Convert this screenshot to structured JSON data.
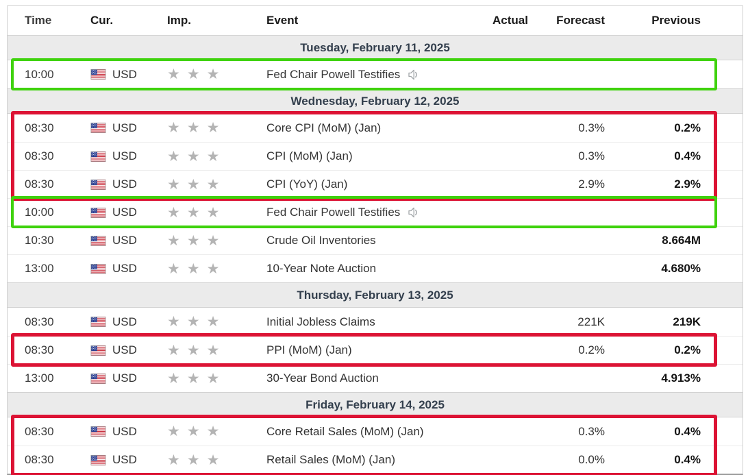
{
  "table": {
    "columns": {
      "time": "Time",
      "cur": "Cur.",
      "imp": "Imp.",
      "event": "Event",
      "actual": "Actual",
      "forecast": "Forecast",
      "previous": "Previous"
    },
    "days": [
      {
        "date_label": "Tuesday, February 11, 2025",
        "events": [
          {
            "time": "10:00",
            "currency": "USD",
            "importance": 3,
            "event": "Fed Chair Powell Testifies",
            "has_audio": true,
            "actual": "",
            "forecast": "",
            "previous": "",
            "highlight": "tuesday-powell"
          }
        ]
      },
      {
        "date_label": "Wednesday, February 12, 2025",
        "events": [
          {
            "time": "08:30",
            "currency": "USD",
            "importance": 3,
            "event": "Core CPI (MoM) (Jan)",
            "has_audio": false,
            "actual": "",
            "forecast": "0.3%",
            "previous": "0.2%",
            "highlight": "wed-cpi-block"
          },
          {
            "time": "08:30",
            "currency": "USD",
            "importance": 3,
            "event": "CPI (MoM) (Jan)",
            "has_audio": false,
            "actual": "",
            "forecast": "0.3%",
            "previous": "0.4%",
            "highlight": "wed-cpi-block"
          },
          {
            "time": "08:30",
            "currency": "USD",
            "importance": 3,
            "event": "CPI (YoY) (Jan)",
            "has_audio": false,
            "actual": "",
            "forecast": "2.9%",
            "previous": "2.9%",
            "highlight": "wed-cpi-block"
          },
          {
            "time": "10:00",
            "currency": "USD",
            "importance": 3,
            "event": "Fed Chair Powell Testifies",
            "has_audio": true,
            "actual": "",
            "forecast": "",
            "previous": "",
            "highlight": "wed-powell"
          },
          {
            "time": "10:30",
            "currency": "USD",
            "importance": 3,
            "event": "Crude Oil Inventories",
            "has_audio": false,
            "actual": "",
            "forecast": "",
            "previous": "8.664M",
            "highlight": ""
          },
          {
            "time": "13:00",
            "currency": "USD",
            "importance": 3,
            "event": "10-Year Note Auction",
            "has_audio": false,
            "actual": "",
            "forecast": "",
            "previous": "4.680%",
            "highlight": ""
          }
        ]
      },
      {
        "date_label": "Thursday, February 13, 2025",
        "events": [
          {
            "time": "08:30",
            "currency": "USD",
            "importance": 3,
            "event": "Initial Jobless Claims",
            "has_audio": false,
            "actual": "",
            "forecast": "221K",
            "previous": "219K",
            "highlight": ""
          },
          {
            "time": "08:30",
            "currency": "USD",
            "importance": 3,
            "event": "PPI (MoM) (Jan)",
            "has_audio": false,
            "actual": "",
            "forecast": "0.2%",
            "previous": "0.2%",
            "highlight": "thu-ppi"
          },
          {
            "time": "13:00",
            "currency": "USD",
            "importance": 3,
            "event": "30-Year Bond Auction",
            "has_audio": false,
            "actual": "",
            "forecast": "",
            "previous": "4.913%",
            "highlight": ""
          }
        ]
      },
      {
        "date_label": "Friday, February 14, 2025",
        "events": [
          {
            "time": "08:30",
            "currency": "USD",
            "importance": 3,
            "event": "Core Retail Sales (MoM) (Jan)",
            "has_audio": false,
            "actual": "",
            "forecast": "0.3%",
            "previous": "0.4%",
            "highlight": "fri-retail"
          },
          {
            "time": "08:30",
            "currency": "USD",
            "importance": 3,
            "event": "Retail Sales (MoM) (Jan)",
            "has_audio": false,
            "actual": "",
            "forecast": "0.0%",
            "previous": "0.4%",
            "highlight": "fri-retail"
          }
        ]
      }
    ]
  },
  "highlights": [
    {
      "id": "tuesday-powell",
      "color": "green"
    },
    {
      "id": "wed-cpi-block",
      "color": "red"
    },
    {
      "id": "wed-powell",
      "color": "green"
    },
    {
      "id": "thu-ppi",
      "color": "red"
    },
    {
      "id": "fri-retail",
      "color": "red"
    }
  ],
  "colors": {
    "green": "#3fd20d",
    "red": "#dc1334",
    "star": "#b4b4b4",
    "date_bg": "#ebebeb",
    "date_text": "#333f4d"
  },
  "icons": {
    "flag": "us-flag-icon",
    "speaker": "speaker-icon",
    "star": "star-icon",
    "star_glyph": "★"
  }
}
